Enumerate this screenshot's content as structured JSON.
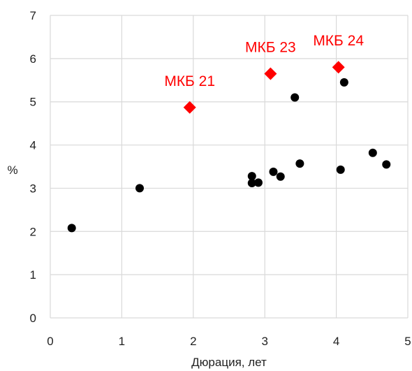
{
  "chart_data": {
    "type": "scatter",
    "title": "",
    "xlabel": "Дюрация, лет",
    "ylabel": "%",
    "xlim": [
      0,
      5
    ],
    "ylim": [
      0,
      7
    ],
    "x_ticks": [
      "0",
      "1",
      "2",
      "3",
      "4",
      "5"
    ],
    "y_ticks": [
      "0",
      "1",
      "2",
      "3",
      "4",
      "5",
      "6",
      "7"
    ],
    "grid": true,
    "legend": "none",
    "colors": {
      "black_series": "#000000",
      "red_series": "#ff0000",
      "grid": "#d9d9d9"
    },
    "series": [
      {
        "marker": "circle",
        "color": "#000000",
        "points": [
          {
            "x": 0.3,
            "y": 2.08
          },
          {
            "x": 1.25,
            "y": 3.0
          },
          {
            "x": 2.82,
            "y": 3.28
          },
          {
            "x": 2.82,
            "y": 3.12
          },
          {
            "x": 2.91,
            "y": 3.13
          },
          {
            "x": 3.12,
            "y": 3.38
          },
          {
            "x": 3.22,
            "y": 3.27
          },
          {
            "x": 3.42,
            "y": 5.1
          },
          {
            "x": 3.49,
            "y": 3.57
          },
          {
            "x": 4.06,
            "y": 3.43
          },
          {
            "x": 4.11,
            "y": 5.45
          },
          {
            "x": 4.51,
            "y": 3.82
          },
          {
            "x": 4.7,
            "y": 3.55
          }
        ]
      },
      {
        "marker": "diamond",
        "color": "#ff0000",
        "points": [
          {
            "x": 1.95,
            "y": 4.87,
            "label": "МКБ 21"
          },
          {
            "x": 3.08,
            "y": 5.65,
            "label": "МКБ 23"
          },
          {
            "x": 4.03,
            "y": 5.8,
            "label": "МКБ 24"
          }
        ]
      }
    ]
  }
}
